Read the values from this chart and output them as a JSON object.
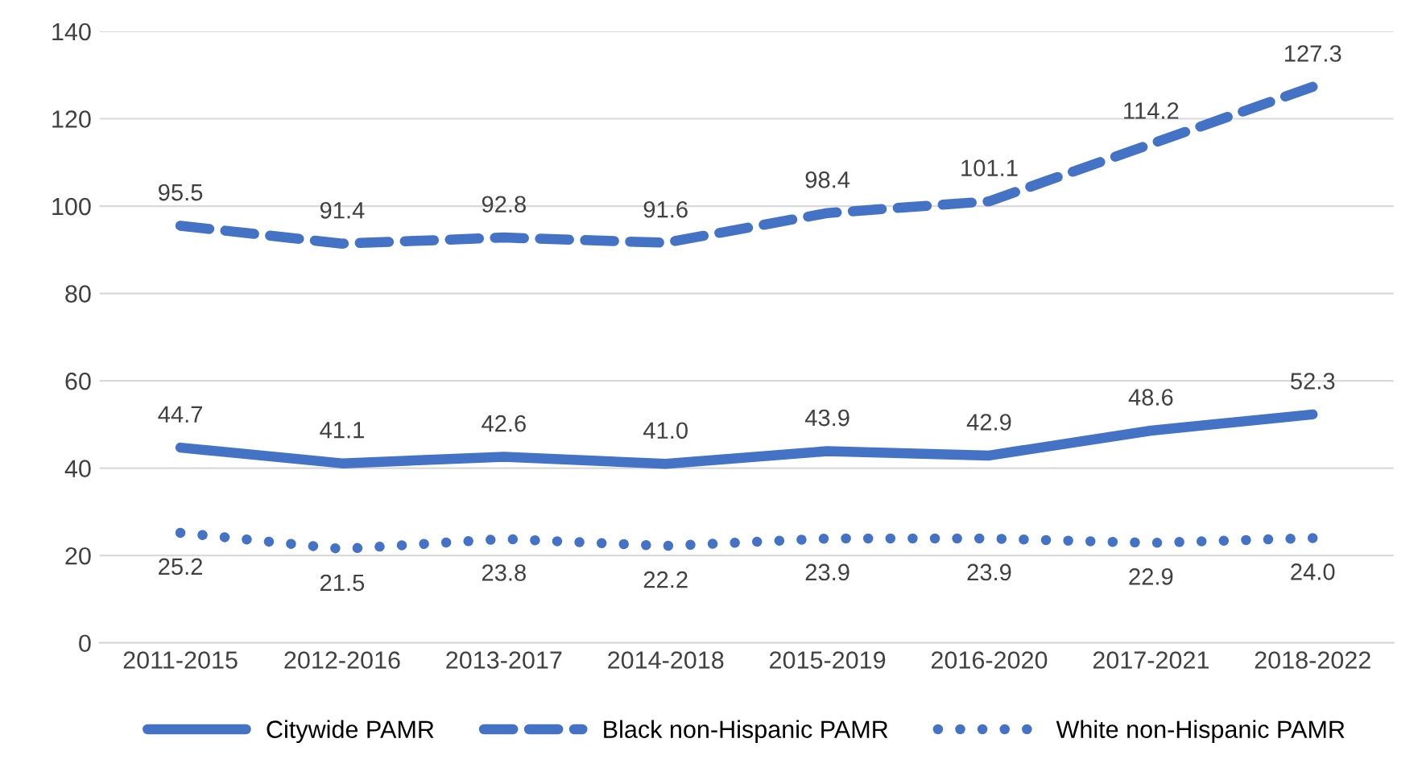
{
  "chart_data": {
    "type": "line",
    "categories": [
      "2011-2015",
      "2012-2016",
      "2013-2017",
      "2014-2018",
      "2015-2019",
      "2016-2020",
      "2017-2021",
      "2018-2022"
    ],
    "series": [
      {
        "name": "Citywide PAMR",
        "color": "#4472c4",
        "line_style": "solid",
        "values": [
          44.7,
          41.1,
          42.6,
          41.0,
          43.9,
          42.9,
          48.6,
          52.3
        ],
        "value_labels": [
          "44.7",
          "41.1",
          "42.6",
          "41.0",
          "43.9",
          "42.9",
          "48.6",
          "52.3"
        ]
      },
      {
        "name": "Black non-Hispanic PAMR",
        "color": "#4472c4",
        "line_style": "dashed",
        "values": [
          95.5,
          91.4,
          92.8,
          91.6,
          98.4,
          101.1,
          114.2,
          127.3
        ],
        "value_labels": [
          "95.5",
          "91.4",
          "92.8",
          "91.6",
          "98.4",
          "101.1",
          "114.2",
          "127.3"
        ]
      },
      {
        "name": "White non-Hispanic PAMR",
        "color": "#4472c4",
        "line_style": "dotted",
        "values": [
          25.2,
          21.5,
          23.8,
          22.2,
          23.9,
          23.9,
          22.9,
          24.0
        ],
        "value_labels": [
          "25.2",
          "21.5",
          "23.8",
          "22.2",
          "23.9",
          "23.9",
          "22.9",
          "24.0"
        ]
      }
    ],
    "ylim": [
      0,
      140
    ],
    "yticks": [
      0,
      20,
      40,
      60,
      80,
      100,
      120,
      140
    ],
    "grid": "y",
    "legend": "bottom",
    "marker": "none"
  }
}
